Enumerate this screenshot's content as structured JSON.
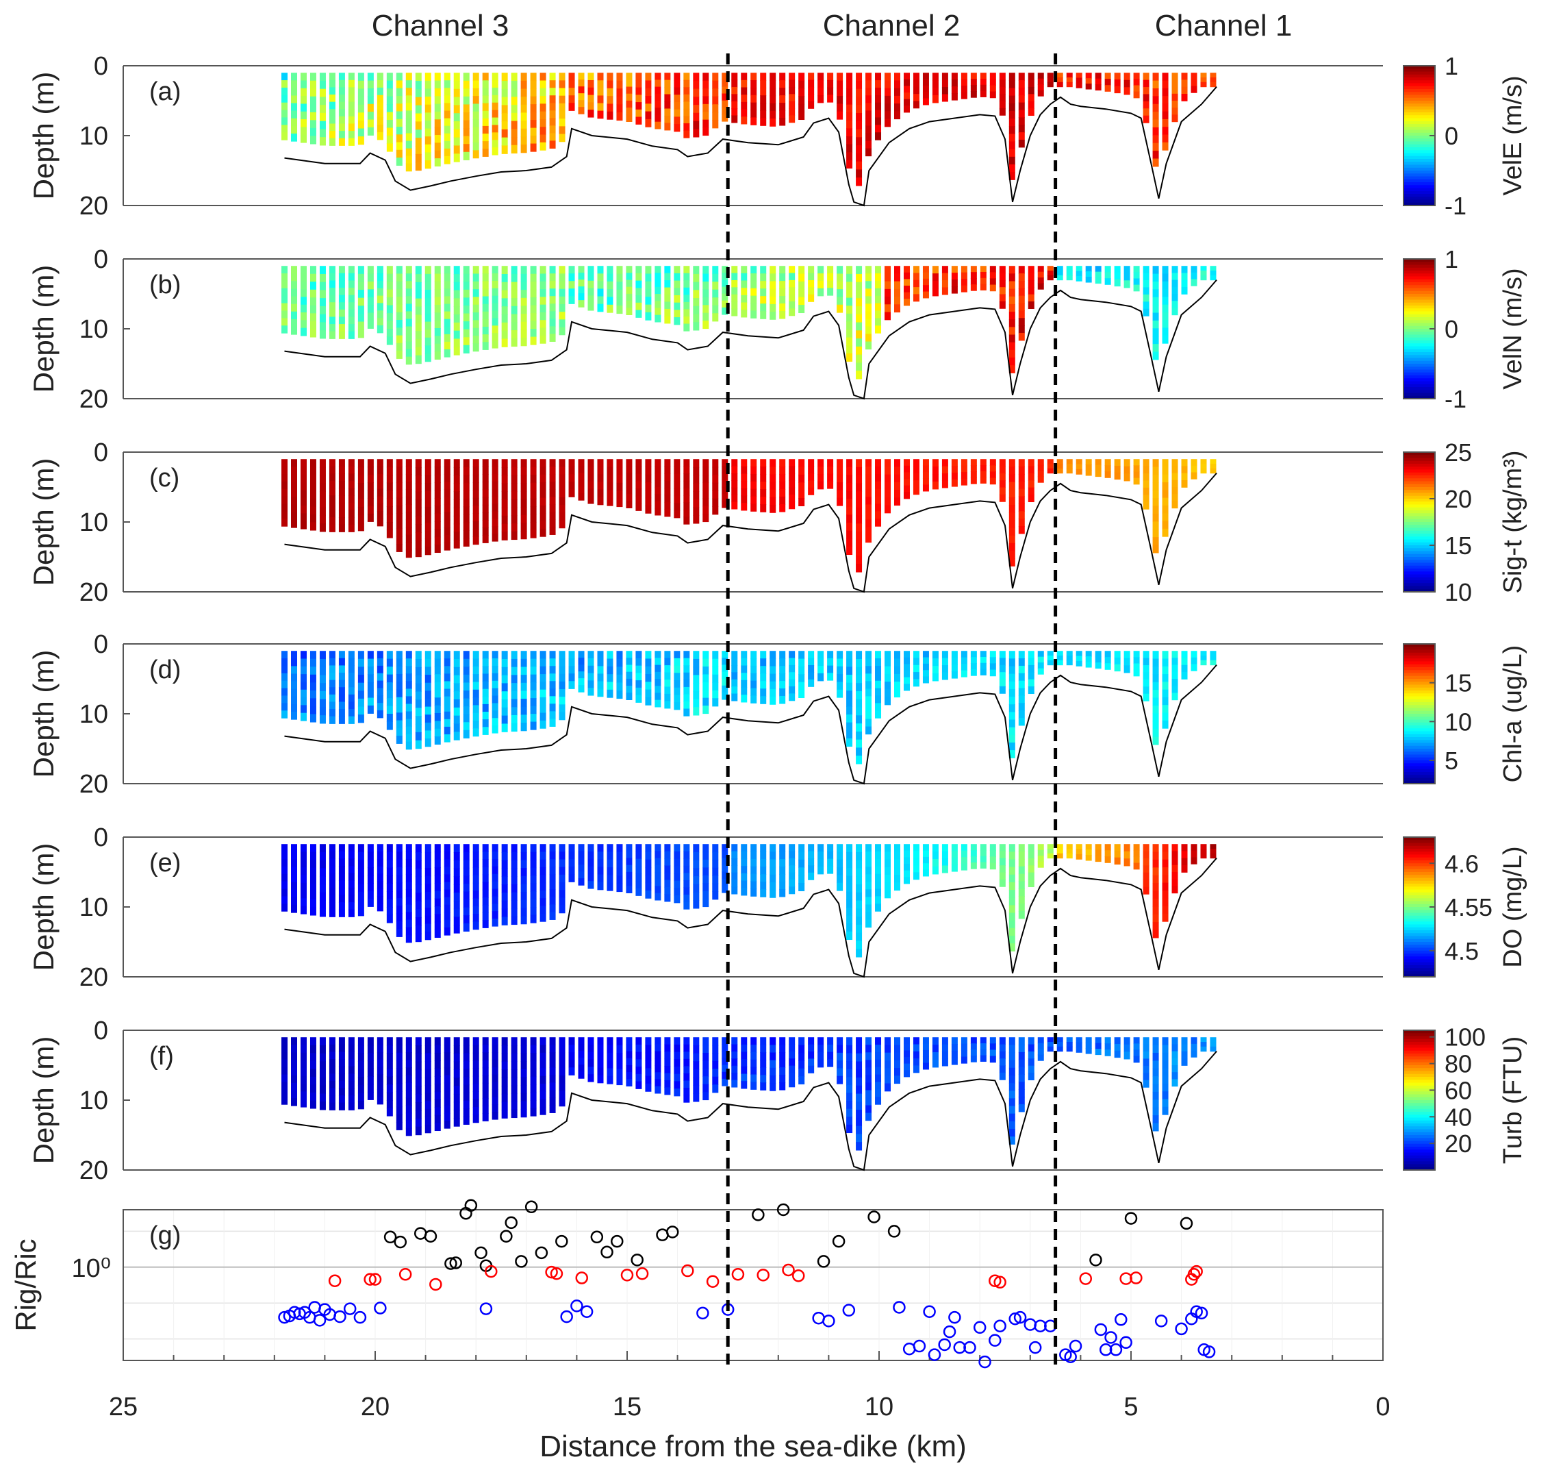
{
  "channel_labels": [
    "Channel 3",
    "Channel 2",
    "Channel 1"
  ],
  "colors": {
    "axis": "#555555",
    "grid": "#e3e3e3",
    "bottom_line": "#000000",
    "divider": "#000000",
    "circle_black": "#000000",
    "circle_red": "#ff0000",
    "circle_blue": "#0000ff"
  },
  "colormap_stops": [
    "#00008f",
    "#0000ff",
    "#0080ff",
    "#00ffff",
    "#80ff80",
    "#ffff00",
    "#ff8000",
    "#ff0000",
    "#800000"
  ],
  "chart_data": [
    {
      "id": "a",
      "panel_label": "(a)",
      "type": "heatmap",
      "ylabel": "Depth (m)",
      "ylim": [
        20,
        0
      ],
      "yticks": [
        "0",
        "10",
        "20"
      ],
      "xlim": [
        25,
        0
      ],
      "colorbar": {
        "label": "VelE (m/s)",
        "range": [
          -1,
          1
        ],
        "ticks": [
          "1",
          "0",
          "-1"
        ],
        "tick_values": [
          1,
          0,
          -1
        ]
      },
      "segments": [
        {
          "from_km": 21.8,
          "to_km": 16.2,
          "start": 0.45,
          "end": 0.68,
          "noise": 0.12
        },
        {
          "from_km": 16.2,
          "to_km": 13.0,
          "start": 0.75,
          "end": 0.82,
          "noise": 0.1
        },
        {
          "from_km": 13.0,
          "to_km": 6.5,
          "start": 0.86,
          "end": 0.9,
          "noise": 0.06
        },
        {
          "from_km": 6.5,
          "to_km": 3.3,
          "start": 0.86,
          "end": 0.8,
          "noise": 0.08
        }
      ]
    },
    {
      "id": "b",
      "panel_label": "(b)",
      "type": "heatmap",
      "ylabel": "Depth (m)",
      "ylim": [
        20,
        0
      ],
      "yticks": [
        "0",
        "10",
        "20"
      ],
      "xlim": [
        25,
        0
      ],
      "colorbar": {
        "label": "VelN (m/s)",
        "range": [
          -1,
          1
        ],
        "ticks": [
          "1",
          "0",
          "-1"
        ],
        "tick_values": [
          1,
          0,
          -1
        ]
      },
      "segments": [
        {
          "from_km": 21.8,
          "to_km": 16.2,
          "start": 0.45,
          "end": 0.5,
          "noise": 0.08
        },
        {
          "from_km": 16.2,
          "to_km": 13.0,
          "start": 0.42,
          "end": 0.48,
          "noise": 0.1
        },
        {
          "from_km": 13.0,
          "to_km": 10.0,
          "start": 0.5,
          "end": 0.55,
          "noise": 0.1
        },
        {
          "from_km": 10.0,
          "to_km": 6.5,
          "start": 0.8,
          "end": 0.86,
          "noise": 0.08
        },
        {
          "from_km": 6.5,
          "to_km": 3.3,
          "start": 0.34,
          "end": 0.38,
          "noise": 0.06
        }
      ]
    },
    {
      "id": "c",
      "panel_label": "(c)",
      "type": "heatmap",
      "ylabel": "Depth (m)",
      "ylim": [
        20,
        0
      ],
      "yticks": [
        "0",
        "10",
        "20"
      ],
      "xlim": [
        25,
        0
      ],
      "colorbar": {
        "label": "Sig-t (kg/m³)",
        "range": [
          10,
          25
        ],
        "ticks": [
          "25",
          "20",
          "15",
          "10"
        ],
        "tick_values": [
          25,
          20,
          15,
          10
        ]
      },
      "segments": [
        {
          "from_km": 21.8,
          "to_km": 13.0,
          "start": 0.95,
          "end": 0.93,
          "noise": 0.01
        },
        {
          "from_km": 13.0,
          "to_km": 6.5,
          "start": 0.88,
          "end": 0.84,
          "noise": 0.02
        },
        {
          "from_km": 6.5,
          "to_km": 3.3,
          "start": 0.74,
          "end": 0.68,
          "noise": 0.02
        }
      ]
    },
    {
      "id": "d",
      "panel_label": "(d)",
      "type": "heatmap",
      "ylabel": "Depth (m)",
      "ylim": [
        20,
        0
      ],
      "yticks": [
        "0",
        "10",
        "20"
      ],
      "xlim": [
        25,
        0
      ],
      "colorbar": {
        "label": "Chl-a (ug/L)",
        "range": [
          2,
          20
        ],
        "ticks": [
          "15",
          "10",
          "5"
        ],
        "tick_values": [
          15,
          10,
          5
        ]
      },
      "segments": [
        {
          "from_km": 21.8,
          "to_km": 16.0,
          "start": 0.22,
          "end": 0.3,
          "noise": 0.07
        },
        {
          "from_km": 16.0,
          "to_km": 13.0,
          "start": 0.28,
          "end": 0.34,
          "noise": 0.07
        },
        {
          "from_km": 13.0,
          "to_km": 6.5,
          "start": 0.3,
          "end": 0.34,
          "noise": 0.05
        },
        {
          "from_km": 6.5,
          "to_km": 3.3,
          "start": 0.33,
          "end": 0.37,
          "noise": 0.04
        }
      ]
    },
    {
      "id": "e",
      "panel_label": "(e)",
      "type": "heatmap",
      "ylabel": "Depth (m)",
      "ylim": [
        20,
        0
      ],
      "yticks": [
        "0",
        "10",
        "20"
      ],
      "xlim": [
        25,
        0
      ],
      "colorbar": {
        "label": "DO (mg/L)",
        "range": [
          4.47,
          4.63
        ],
        "ticks": [
          "4.6",
          "4.55",
          "4.5"
        ],
        "tick_values": [
          4.6,
          4.55,
          4.5
        ]
      },
      "segments": [
        {
          "from_km": 21.8,
          "to_km": 13.0,
          "start": 0.1,
          "end": 0.2,
          "noise": 0.02
        },
        {
          "from_km": 13.0,
          "to_km": 9.0,
          "start": 0.25,
          "end": 0.36,
          "noise": 0.02
        },
        {
          "from_km": 9.0,
          "to_km": 6.5,
          "start": 0.36,
          "end": 0.55,
          "noise": 0.03
        },
        {
          "from_km": 6.5,
          "to_km": 4.8,
          "start": 0.66,
          "end": 0.76,
          "noise": 0.03
        },
        {
          "from_km": 4.8,
          "to_km": 3.3,
          "start": 0.8,
          "end": 0.96,
          "noise": 0.03
        }
      ]
    },
    {
      "id": "f",
      "panel_label": "(f)",
      "type": "heatmap",
      "ylabel": "Depth (m)",
      "ylim": [
        20,
        0
      ],
      "yticks": [
        "0",
        "10",
        "20"
      ],
      "xlim": [
        25,
        0
      ],
      "colorbar": {
        "label": "Turb (FTU)",
        "range": [
          0,
          105
        ],
        "ticks": [
          "100",
          "80",
          "60",
          "40",
          "20"
        ],
        "tick_values": [
          100,
          80,
          60,
          40,
          20
        ]
      },
      "segments": [
        {
          "from_km": 21.8,
          "to_km": 16.2,
          "start": 0.06,
          "end": 0.08,
          "noise": 0.02
        },
        {
          "from_km": 16.2,
          "to_km": 13.0,
          "start": 0.1,
          "end": 0.16,
          "noise": 0.03
        },
        {
          "from_km": 13.0,
          "to_km": 6.5,
          "start": 0.16,
          "end": 0.2,
          "noise": 0.04
        },
        {
          "from_km": 6.5,
          "to_km": 3.3,
          "start": 0.2,
          "end": 0.26,
          "noise": 0.04
        }
      ]
    },
    {
      "id": "g",
      "panel_label": "(g)",
      "type": "scatter",
      "ylabel": "Rig/Ric",
      "ytick_label": "10⁰",
      "yscale": "log",
      "ylim_log10": [
        -1.3,
        0.8
      ],
      "xlim": [
        25,
        0
      ],
      "xticks": [
        25,
        20,
        15,
        10,
        5,
        0
      ],
      "xlabel": "Distance from the sea-dike (km)",
      "series": [
        {
          "name": "black",
          "points": [
            [
              19.7,
              0.42
            ],
            [
              19.5,
              0.35
            ],
            [
              19.1,
              0.47
            ],
            [
              18.9,
              0.43
            ],
            [
              18.5,
              0.05
            ],
            [
              18.4,
              0.06
            ],
            [
              18.2,
              0.75
            ],
            [
              18.1,
              0.86
            ],
            [
              17.9,
              0.2
            ],
            [
              17.8,
              0.02
            ],
            [
              17.4,
              0.43
            ],
            [
              17.3,
              0.62
            ],
            [
              17.1,
              0.08
            ],
            [
              16.9,
              0.84
            ],
            [
              16.7,
              0.2
            ],
            [
              16.3,
              0.36
            ],
            [
              15.6,
              0.42
            ],
            [
              15.4,
              0.21
            ],
            [
              15.2,
              0.36
            ],
            [
              14.8,
              0.1
            ],
            [
              14.3,
              0.45
            ],
            [
              14.1,
              0.49
            ],
            [
              12.4,
              0.73
            ],
            [
              11.9,
              0.8
            ],
            [
              11.1,
              0.08
            ],
            [
              10.8,
              0.36
            ],
            [
              10.1,
              0.7
            ],
            [
              9.7,
              0.5
            ],
            [
              5.7,
              0.1
            ],
            [
              5.0,
              0.68
            ],
            [
              3.9,
              0.61
            ]
          ]
        },
        {
          "name": "red",
          "points": [
            [
              20.8,
              -0.19
            ],
            [
              20.1,
              -0.17
            ],
            [
              20.0,
              -0.17
            ],
            [
              19.4,
              -0.1
            ],
            [
              18.8,
              -0.24
            ],
            [
              17.7,
              -0.06
            ],
            [
              16.5,
              -0.07
            ],
            [
              16.4,
              -0.09
            ],
            [
              15.9,
              -0.15
            ],
            [
              15.0,
              -0.11
            ],
            [
              14.7,
              -0.09
            ],
            [
              13.8,
              -0.05
            ],
            [
              13.3,
              -0.2
            ],
            [
              12.8,
              -0.1
            ],
            [
              12.3,
              -0.11
            ],
            [
              11.8,
              -0.04
            ],
            [
              11.6,
              -0.12
            ],
            [
              7.7,
              -0.19
            ],
            [
              7.6,
              -0.21
            ],
            [
              5.9,
              -0.16
            ],
            [
              5.1,
              -0.16
            ],
            [
              4.9,
              -0.15
            ],
            [
              3.8,
              -0.17
            ],
            [
              3.75,
              -0.1
            ],
            [
              3.7,
              -0.06
            ]
          ]
        },
        {
          "name": "blue",
          "points": [
            [
              21.8,
              -0.7
            ],
            [
              21.7,
              -0.68
            ],
            [
              21.6,
              -0.63
            ],
            [
              21.5,
              -0.65
            ],
            [
              21.4,
              -0.63
            ],
            [
              21.3,
              -0.7
            ],
            [
              21.2,
              -0.56
            ],
            [
              21.1,
              -0.74
            ],
            [
              21.0,
              -0.59
            ],
            [
              20.9,
              -0.66
            ],
            [
              20.7,
              -0.69
            ],
            [
              20.5,
              -0.58
            ],
            [
              20.3,
              -0.7
            ],
            [
              19.9,
              -0.57
            ],
            [
              17.8,
              -0.58
            ],
            [
              16.2,
              -0.69
            ],
            [
              16.0,
              -0.54
            ],
            [
              15.8,
              -0.62
            ],
            [
              13.5,
              -0.64
            ],
            [
              13.0,
              -0.59
            ],
            [
              11.2,
              -0.71
            ],
            [
              11.0,
              -0.75
            ],
            [
              10.6,
              -0.6
            ],
            [
              9.6,
              -0.56
            ],
            [
              9.4,
              -1.14
            ],
            [
              9.2,
              -1.1
            ],
            [
              9.0,
              -0.62
            ],
            [
              8.9,
              -1.22
            ],
            [
              8.7,
              -1.08
            ],
            [
              8.6,
              -0.9
            ],
            [
              8.5,
              -0.7
            ],
            [
              8.4,
              -1.12
            ],
            [
              8.2,
              -1.12
            ],
            [
              8.0,
              -0.84
            ],
            [
              7.9,
              -1.32
            ],
            [
              7.7,
              -1.02
            ],
            [
              7.6,
              -0.82
            ],
            [
              7.3,
              -0.72
            ],
            [
              7.2,
              -0.7
            ],
            [
              7.0,
              -0.8
            ],
            [
              6.9,
              -1.12
            ],
            [
              6.8,
              -0.82
            ],
            [
              6.6,
              -0.82
            ],
            [
              6.3,
              -1.22
            ],
            [
              6.2,
              -1.25
            ],
            [
              6.1,
              -1.1
            ],
            [
              5.6,
              -0.87
            ],
            [
              5.5,
              -1.15
            ],
            [
              5.4,
              -0.98
            ],
            [
              5.3,
              -1.15
            ],
            [
              5.2,
              -0.73
            ],
            [
              5.1,
              -1.05
            ],
            [
              4.4,
              -0.75
            ],
            [
              4.0,
              -0.86
            ],
            [
              3.8,
              -0.72
            ],
            [
              3.7,
              -0.62
            ],
            [
              3.6,
              -0.64
            ],
            [
              3.55,
              -1.15
            ],
            [
              3.45,
              -1.18
            ]
          ]
        }
      ]
    }
  ]
}
